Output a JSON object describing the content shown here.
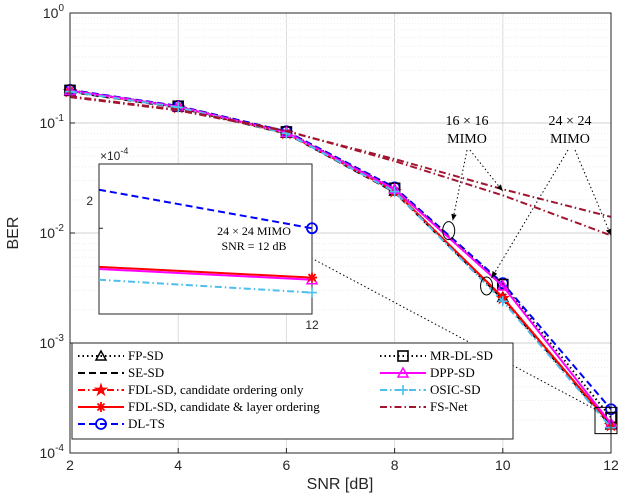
{
  "chart_data": {
    "type": "line",
    "xlabel": "SNR [dB]",
    "ylabel": "BER",
    "xlim": [
      2,
      12
    ],
    "ylim": [
      0.0001,
      1
    ],
    "yscale": "log",
    "grid": true,
    "x_ticks": [
      "2",
      "4",
      "6",
      "8",
      "10",
      "12"
    ],
    "y_ticks": [
      {
        "base": "10",
        "exp": "0",
        "value": 1
      },
      {
        "base": "10",
        "exp": "-1",
        "value": 0.1
      },
      {
        "base": "10",
        "exp": "-2",
        "value": 0.01
      },
      {
        "base": "10",
        "exp": "-3",
        "value": 0.001
      },
      {
        "base": "10",
        "exp": "-4",
        "value": 0.0001
      }
    ],
    "x": [
      2,
      4,
      6,
      8,
      10,
      12
    ],
    "series": [
      {
        "name": "FP-SD",
        "color": "#000000",
        "dash": "dotted",
        "marker": "triangle",
        "values": [
          0.195,
          0.14,
          0.081,
          0.024,
          0.0026,
          0.00018
        ]
      },
      {
        "name": "SE-SD",
        "color": "#000000",
        "dash": "dashed",
        "marker": "none",
        "values": [
          0.192,
          0.138,
          0.08,
          0.0235,
          0.0025,
          0.000175
        ]
      },
      {
        "name": "FDL-SD, candidate ordering only",
        "color": "#ff0000",
        "dash": "dashdot",
        "marker": "star",
        "values": [
          0.194,
          0.139,
          0.0805,
          0.0238,
          0.00255,
          0.000178
        ]
      },
      {
        "name": "FDL-SD, candidate & layer ordering",
        "color": "#ff0000",
        "dash": "solid",
        "marker": "asterisk",
        "values": [
          0.196,
          0.14,
          0.081,
          0.024,
          0.0026,
          0.00018
        ]
      },
      {
        "name": "DL-TS",
        "color": "#0000ff",
        "dash": "dashed",
        "marker": "circle",
        "values": [
          0.2,
          0.143,
          0.084,
          0.026,
          0.0035,
          0.00025
        ]
      },
      {
        "name": "MR-DL-SD",
        "color": "#000000",
        "dash": "dotted",
        "marker": "square",
        "values": [
          0.198,
          0.142,
          0.083,
          0.0255,
          0.0034,
          0.00021
        ]
      },
      {
        "name": "DPP-SD",
        "color": "#ff00ff",
        "dash": "solid",
        "marker": "triangle",
        "values": [
          0.197,
          0.141,
          0.082,
          0.025,
          0.0033,
          0.000185
        ]
      },
      {
        "name": "OSIC-SD",
        "color": "#4dbeee",
        "dash": "dashdot",
        "marker": "plus",
        "values": [
          0.193,
          0.139,
          0.0805,
          0.0238,
          0.0024,
          0.00017
        ]
      },
      {
        "name": "FS-Net",
        "color": "#a2142f",
        "dash": "dashdot",
        "marker": "none",
        "values": [
          0.175,
          0.132,
          0.085,
          0.045,
          0.022,
          0.0095
        ]
      },
      {
        "name": "",
        "color": "#a2142f",
        "dash": "dashdot",
        "marker": "none",
        "values": [
          0.172,
          0.13,
          0.084,
          0.047,
          0.025,
          0.014
        ]
      }
    ],
    "annotations": {
      "mimo16": [
        "16 × 16",
        "MIMO"
      ],
      "mimo24": [
        "24 × 24",
        "MIMO"
      ]
    },
    "inset": {
      "multiplier": "×10",
      "multiplier_exp": "-4",
      "ytick": "2",
      "xtick": "12",
      "note": [
        "24 × 24 MIMO",
        "SNR = 12 dB"
      ],
      "x_range": [
        11.93,
        12.0
      ],
      "y_range": [
        0.00016,
        0.00023
      ],
      "lines": [
        {
          "color": "#0000ff",
          "dash": "dashed",
          "marker": "circle",
          "y0": 0.000218,
          "y1": 0.0002
        },
        {
          "color": "#ff00ff",
          "dash": "solid",
          "marker": "triangle",
          "y0": 0.000181,
          "y1": 0.000176
        },
        {
          "color": "#ff0000",
          "dash": "solid",
          "marker": "asterisk",
          "y0": 0.000182,
          "y1": 0.000177
        },
        {
          "color": "#4dbeee",
          "dash": "dashdot",
          "marker": "plus",
          "y0": 0.000176,
          "y1": 0.00017
        }
      ]
    }
  }
}
